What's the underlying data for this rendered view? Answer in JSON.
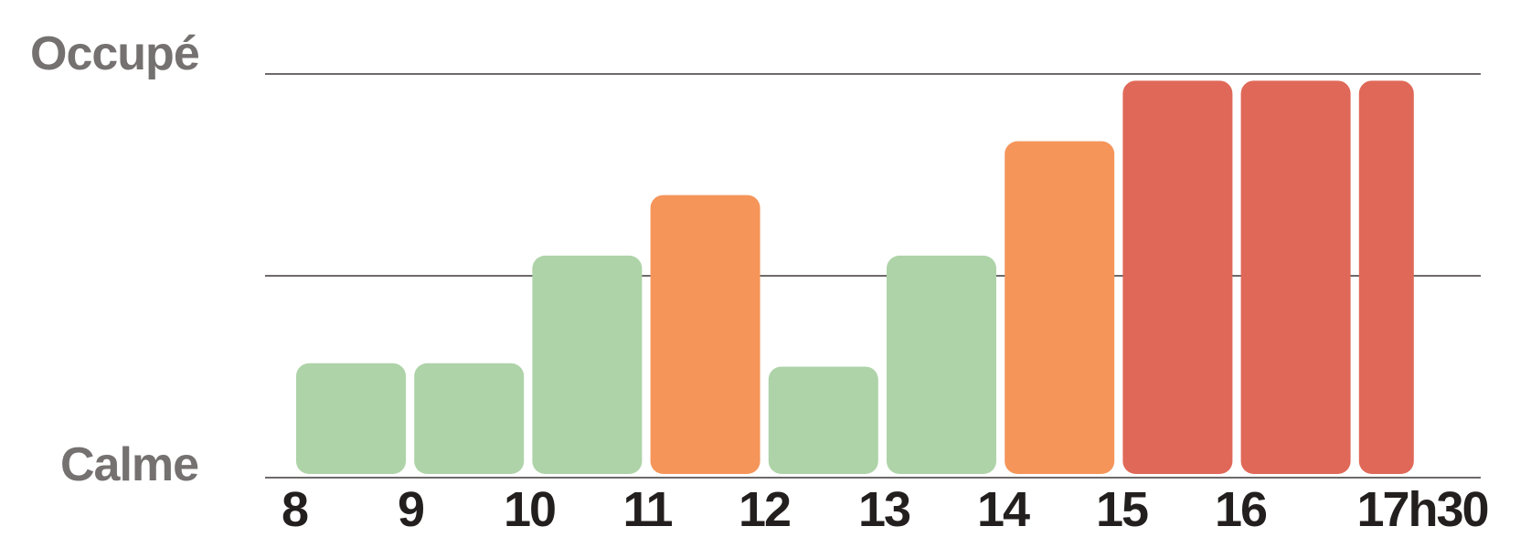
{
  "labels": {
    "top": "Occupé",
    "bottom": "Calme"
  },
  "chart_data": {
    "type": "bar",
    "title": "",
    "xlabel": "",
    "ylabel": "",
    "x_ticks": [
      "8",
      "9",
      "10",
      "11",
      "12",
      "13",
      "14",
      "15",
      "16",
      "17h30"
    ],
    "bars": [
      {
        "start": "8",
        "level": 0.34,
        "color": "#aed3a8"
      },
      {
        "start": "9",
        "level": 0.34,
        "color": "#aed3a8"
      },
      {
        "start": "10",
        "level": 0.66,
        "color": "#aed3a8"
      },
      {
        "start": "11",
        "level": 0.84,
        "color": "#f5955a"
      },
      {
        "start": "12",
        "level": 0.33,
        "color": "#aed3a8"
      },
      {
        "start": "13",
        "level": 0.66,
        "color": "#aed3a8"
      },
      {
        "start": "14",
        "level": 1.0,
        "color": "#f5955a"
      },
      {
        "start": "15",
        "level": 1.18,
        "color": "#e06858"
      },
      {
        "start": "16",
        "level": 1.18,
        "color": "#e06858"
      },
      {
        "start": "17",
        "level": 1.18,
        "color": "#e06858"
      }
    ],
    "ylim": [
      0,
      1.2
    ],
    "gridlines": [
      0,
      0.6,
      1.2
    ],
    "grid": true,
    "legend": "none",
    "colors": {
      "calm": "#aed3a8",
      "medium": "#f5955a",
      "busy": "#e06858",
      "gridline": "#6e6a69",
      "ticks": "#231f1e",
      "labels": "#757170"
    }
  }
}
